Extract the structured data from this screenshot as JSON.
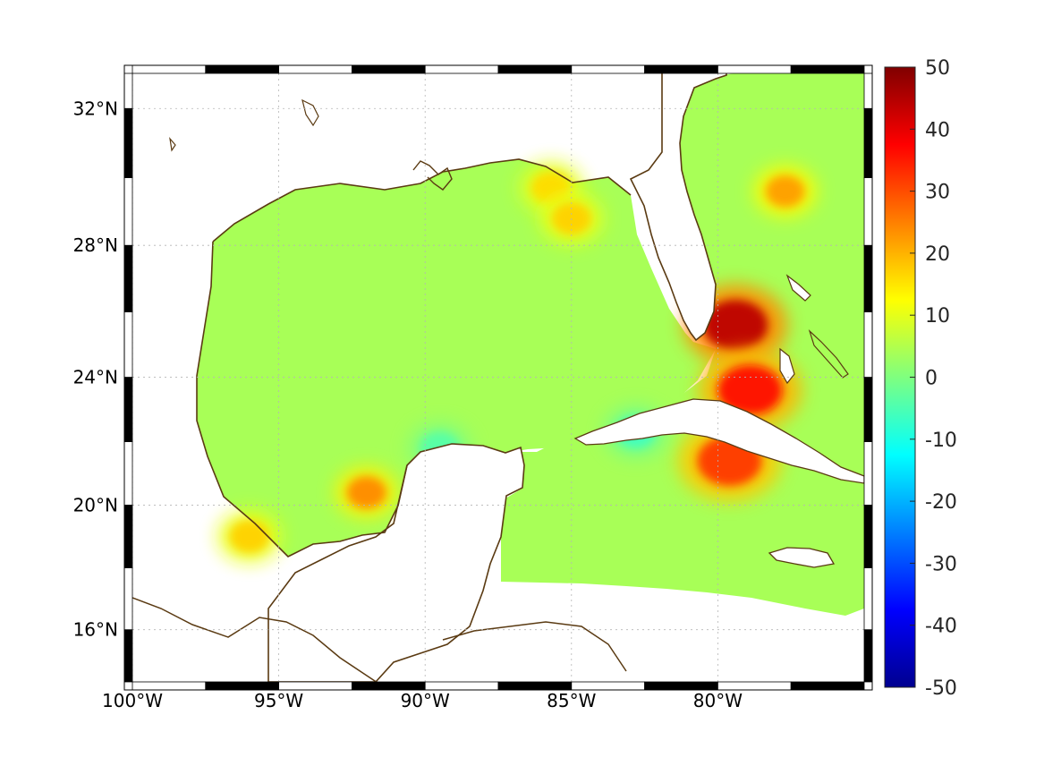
{
  "map": {
    "projection": "mercator",
    "lon_range": [
      -100,
      -75
    ],
    "lat_range": [
      14.3,
      33
    ],
    "grid": true,
    "frame": "black-and-white checkered",
    "coastline_color": "#5a3a12",
    "land_color": "#ffffff",
    "x_ticks": [
      {
        "value": -100,
        "label": "100°W"
      },
      {
        "value": -95,
        "label": "95°W"
      },
      {
        "value": -90,
        "label": "90°W"
      },
      {
        "value": -85,
        "label": "85°W"
      },
      {
        "value": -80,
        "label": "80°W"
      }
    ],
    "y_ticks": [
      {
        "value": 32,
        "label": "32°N"
      },
      {
        "value": 28,
        "label": "28°N"
      },
      {
        "value": 24,
        "label": "24°N"
      },
      {
        "value": 20,
        "label": "20°N"
      },
      {
        "value": 16,
        "label": "16°N"
      }
    ],
    "field": {
      "background_value": 4,
      "features": [
        {
          "name": "Bahamas NE maximum",
          "lon": -79.4,
          "lat": 25.6,
          "value": 44
        },
        {
          "name": "Bahamas S maximum",
          "lon": -78.9,
          "lat": 23.6,
          "value": 36
        },
        {
          "name": "Bay of Campeche maximum",
          "lon": -92.0,
          "lat": 20.4,
          "value": 24
        },
        {
          "name": "Cuba S spot",
          "lon": -79.6,
          "lat": 21.4,
          "value": 32
        },
        {
          "name": "Cuba W spot",
          "lon": -82.8,
          "lat": 22.3,
          "value": -6
        },
        {
          "name": "Yucatan N band",
          "lon": -89.5,
          "lat": 21.8,
          "value": -4
        },
        {
          "name": "Florida panhandle",
          "lon": -85.7,
          "lat": 29.7,
          "value": 16
        },
        {
          "name": "Mississippi bight",
          "lon": -85.0,
          "lat": 28.8,
          "value": 17
        },
        {
          "name": "NW Atlantic spot",
          "lon": -77.7,
          "lat": 29.6,
          "value": 22
        },
        {
          "name": "Mexico coast SW",
          "lon": -96.0,
          "lat": 19.0,
          "value": 17
        }
      ]
    }
  },
  "colorbar": {
    "min": -50,
    "max": 50,
    "colormap": "jet",
    "ticks": [
      {
        "value": 50,
        "label": "50"
      },
      {
        "value": 40,
        "label": "40"
      },
      {
        "value": 30,
        "label": "30"
      },
      {
        "value": 20,
        "label": "20"
      },
      {
        "value": 10,
        "label": "10"
      },
      {
        "value": 0,
        "label": "0"
      },
      {
        "value": -10,
        "label": "-10"
      },
      {
        "value": -20,
        "label": "-20"
      },
      {
        "value": -30,
        "label": "-30"
      },
      {
        "value": -40,
        "label": "-40"
      },
      {
        "value": -50,
        "label": "-50"
      }
    ]
  }
}
